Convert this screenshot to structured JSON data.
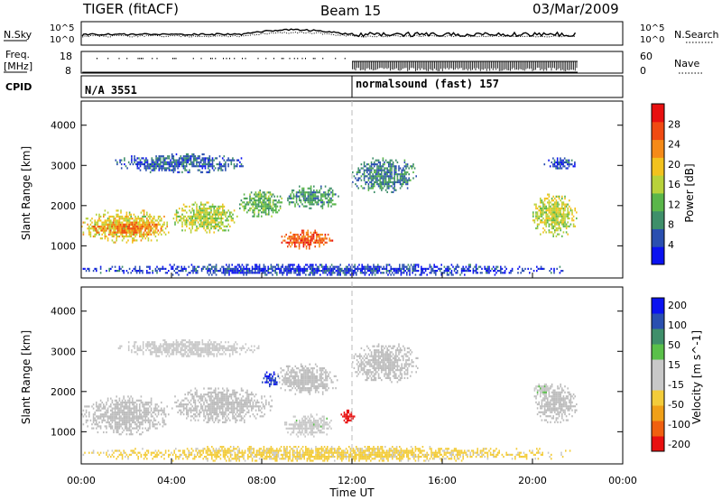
{
  "header": {
    "station": "TIGER (fitACF)",
    "beam": "Beam 15",
    "date": "03/Mar/2009"
  },
  "top_panels": {
    "sky": {
      "left_label": "N.Sky",
      "ticks": [
        "10^5",
        "10^0"
      ],
      "right_label": "N.Search",
      "right_ticks": [
        "10^5",
        "10^0"
      ]
    },
    "freq": {
      "left_label_1": "Freq.",
      "left_label_2": "[MHz]",
      "ticks": [
        "18",
        "8"
      ],
      "right_label": "Nave",
      "right_ticks": [
        "60",
        "0"
      ]
    },
    "cpid": {
      "label": "CPID",
      "segment_1": "N/A 3551",
      "segment_2": "normalsound (fast) 157"
    }
  },
  "colors": {
    "power": [
      "#0a12f0",
      "#2a4fb0",
      "#3f8f6a",
      "#5ab64a",
      "#b8d23a",
      "#f2c21e",
      "#f58a18",
      "#f04a12",
      "#e81010"
    ],
    "velocity": [
      "#e81010",
      "#f06010",
      "#f0a018",
      "#f3cc3a",
      "#c8c8c8",
      "#c8c8c8",
      "#5ac04a",
      "#3f8f6a",
      "#2a4fb0",
      "#0a12f0"
    ],
    "ground_scatter": "#bdbdbd"
  },
  "chart_data": [
    {
      "type": "heatmap",
      "panel": "power",
      "ylabel": "Slant Range [km]",
      "ylim": [
        200,
        4600
      ],
      "yticks": [
        "1000",
        "2000",
        "3000",
        "4000"
      ],
      "colorbar_label": "Power [dB]",
      "colorbar_ticks": [
        "4",
        "8",
        "12",
        "16",
        "20",
        "24",
        "28"
      ],
      "colorbar_range": [
        0,
        32
      ],
      "regions": [
        {
          "t0": 0.0,
          "t1": 4.0,
          "r0": 1050,
          "r1": 1900,
          "v": 18
        },
        {
          "t0": 0.5,
          "t1": 3.8,
          "r0": 1250,
          "r1": 1600,
          "v": 24
        },
        {
          "t0": 4.0,
          "t1": 7.0,
          "r0": 1300,
          "r1": 2100,
          "v": 16
        },
        {
          "t0": 7.0,
          "t1": 9.0,
          "r0": 1700,
          "r1": 2400,
          "v": 12
        },
        {
          "t0": 9.0,
          "t1": 11.5,
          "r0": 1900,
          "r1": 2500,
          "v": 10
        },
        {
          "t0": 8.8,
          "t1": 11.2,
          "r0": 900,
          "r1": 1400,
          "v": 26
        },
        {
          "t0": 1.5,
          "t1": 7.5,
          "r0": 2800,
          "r1": 3300,
          "v": 6
        },
        {
          "t0": 12.0,
          "t1": 15.0,
          "r0": 2300,
          "r1": 3200,
          "v": 8
        },
        {
          "t0": 20.0,
          "t1": 22.0,
          "r0": 1200,
          "r1": 2300,
          "v": 16
        },
        {
          "t0": 20.5,
          "t1": 22.0,
          "r0": 2900,
          "r1": 3200,
          "v": 5
        },
        {
          "t0": 0.0,
          "t1": 22.0,
          "r0": 250,
          "r1": 550,
          "v": 4
        }
      ]
    },
    {
      "type": "heatmap",
      "panel": "velocity",
      "ylabel": "Slant Range [km]",
      "ylim": [
        200,
        4600
      ],
      "yticks": [
        "1000",
        "2000",
        "3000",
        "4000"
      ],
      "colorbar_label": "Velocity [m s^-1]",
      "colorbar_ticks": [
        "200",
        "100",
        "50",
        "15",
        "-15",
        "-50",
        "-100",
        "-200"
      ],
      "colorbar_range": [
        -250,
        250
      ],
      "regions": [
        {
          "t0": 0.0,
          "t1": 4.0,
          "r0": 900,
          "r1": 1900,
          "v": 0,
          "gs": true
        },
        {
          "t0": 4.0,
          "t1": 8.5,
          "r0": 1200,
          "r1": 2100,
          "v": 0,
          "gs": true
        },
        {
          "t0": 8.5,
          "t1": 11.5,
          "r0": 1900,
          "r1": 2700,
          "v": 0,
          "gs": true
        },
        {
          "t0": 9.0,
          "t1": 11.2,
          "r0": 850,
          "r1": 1450,
          "v": 35
        },
        {
          "t0": 1.5,
          "t1": 8.0,
          "r0": 2850,
          "r1": 3300,
          "v": -30
        },
        {
          "t0": 12.0,
          "t1": 15.0,
          "r0": 2200,
          "r1": 3200,
          "v": 0,
          "gs": true
        },
        {
          "t0": 20.0,
          "t1": 22.0,
          "r0": 1200,
          "r1": 2200,
          "v": 0,
          "gs": true
        },
        {
          "t0": 20.0,
          "t1": 21.0,
          "r0": 1900,
          "r1": 2200,
          "v": 40
        },
        {
          "t0": 0.0,
          "t1": 22.0,
          "r0": 250,
          "r1": 650,
          "v": -60
        },
        {
          "t0": 8.0,
          "t1": 8.8,
          "r0": 2100,
          "r1": 2500,
          "v": 200
        },
        {
          "t0": 11.5,
          "t1": 12.2,
          "r0": 1200,
          "r1": 1600,
          "v": -220
        }
      ]
    }
  ],
  "x_axis": {
    "label": "Time UT",
    "ticks": [
      "00:00",
      "04:00",
      "08:00",
      "12:00",
      "16:00",
      "20:00",
      "00:00"
    ],
    "range_hours": [
      0,
      24
    ],
    "marker_hour": 12
  }
}
